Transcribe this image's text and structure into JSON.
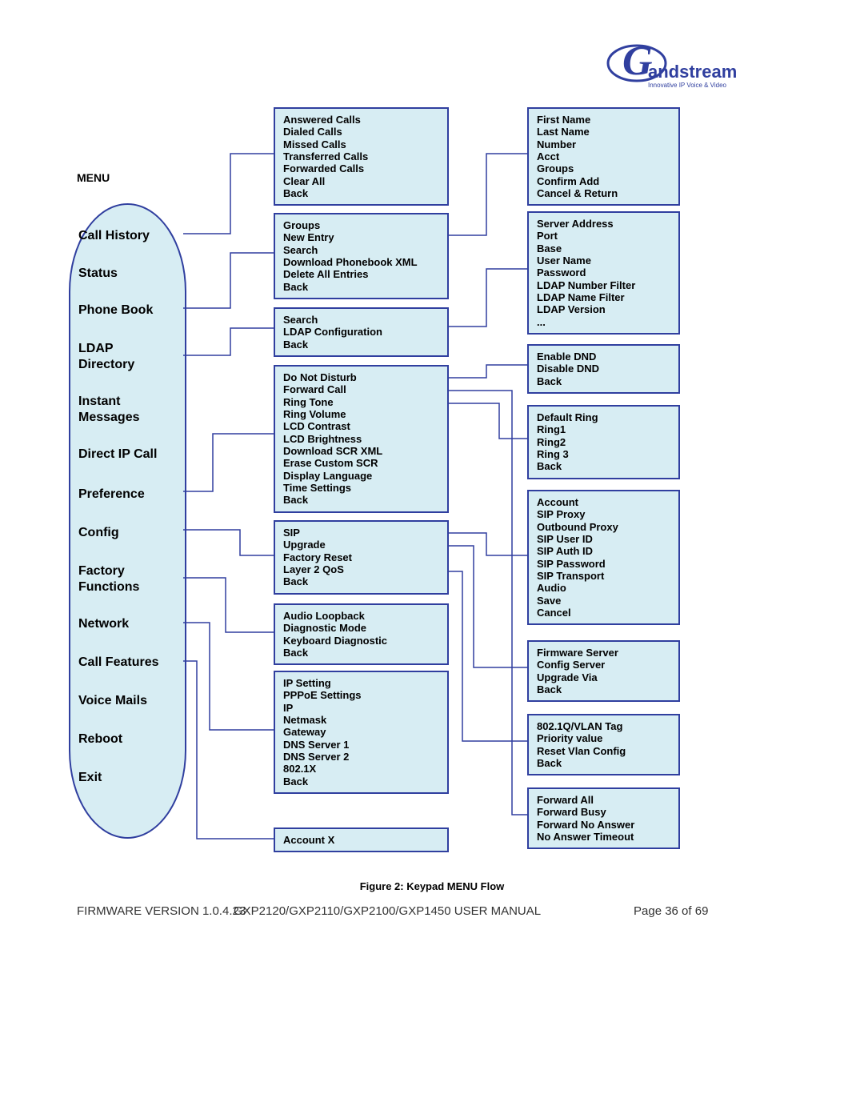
{
  "colors": {
    "box_fill": "#d7edf3",
    "box_border": "#303f9f",
    "line": "#303f9f",
    "text": "#000000",
    "bg": "#ffffff"
  },
  "logo": {
    "word": "andstream",
    "tag": "Innovative IP Voice & Video"
  },
  "menu": {
    "title": "MENU",
    "items": [
      "Call History",
      "Status",
      "Phone Book",
      "LDAP Directory",
      "Instant Messages",
      "Direct IP Call",
      "Preference",
      "Config",
      "Factory Functions",
      "Network",
      "Call Features",
      "Voice Mails",
      "Reboot",
      "Exit"
    ]
  },
  "col2": {
    "box0": [
      "Answered Calls",
      "Dialed Calls",
      "Missed Calls",
      "Transferred Calls",
      "Forwarded Calls",
      "Clear All",
      "Back"
    ],
    "box1": [
      "Groups",
      "New Entry",
      "Search",
      "Download Phonebook XML",
      "Delete All Entries",
      "Back"
    ],
    "box2": [
      "Search",
      "LDAP Configuration",
      "Back"
    ],
    "box3": [
      "Do Not Disturb",
      "Forward Call",
      "Ring Tone",
      "Ring Volume",
      "LCD Contrast",
      "LCD Brightness",
      "Download SCR XML",
      "Erase Custom SCR",
      "Display Language",
      "Time Settings",
      "Back"
    ],
    "box4": [
      "SIP",
      "Upgrade",
      "Factory Reset",
      "Layer 2 QoS",
      "Back"
    ],
    "box5": [
      "Audio Loopback",
      "Diagnostic Mode",
      "Keyboard Diagnostic",
      "Back"
    ],
    "box6": [
      "IP Setting",
      "PPPoE Settings",
      "IP",
      "Netmask",
      "Gateway",
      "DNS Server 1",
      "DNS Server 2",
      "802.1X",
      "Back"
    ],
    "box7": [
      "Account X"
    ]
  },
  "col3": {
    "box0": [
      "First Name",
      "Last Name",
      "Number",
      "Acct",
      "Groups",
      "Confirm Add",
      "Cancel & Return"
    ],
    "box1": [
      "Server Address",
      "Port",
      "Base",
      "User Name",
      "Password",
      "LDAP Number Filter",
      "LDAP Name Filter",
      "LDAP Version",
      "..."
    ],
    "box2": [
      "Enable DND",
      "Disable DND",
      "Back"
    ],
    "box3": [
      "Default Ring",
      "Ring1",
      "Ring2",
      "Ring 3",
      "Back"
    ],
    "box4": [
      "Account",
      "SIP Proxy",
      "Outbound Proxy",
      "SIP User ID",
      "SIP Auth ID",
      "SIP Password",
      "SIP Transport",
      "Audio",
      "Save",
      "Cancel"
    ],
    "box5": [
      "Firmware Server",
      "Config Server",
      "Upgrade Via",
      "Back"
    ],
    "box6": [
      "802.1Q/VLAN Tag",
      "Priority value",
      "Reset Vlan Config",
      "Back"
    ],
    "box7": [
      "Forward All",
      "Forward Busy",
      "Forward No Answer",
      "No Answer Timeout"
    ]
  },
  "caption": "Figure 2: Keypad MENU Flow",
  "footer": {
    "left": "FIRMWARE VERSION 1.0.4.23",
    "center": "GXP2120/GXP2110/GXP2100/GXP1450 USER MANUAL",
    "right": "Page 36 of 69"
  }
}
